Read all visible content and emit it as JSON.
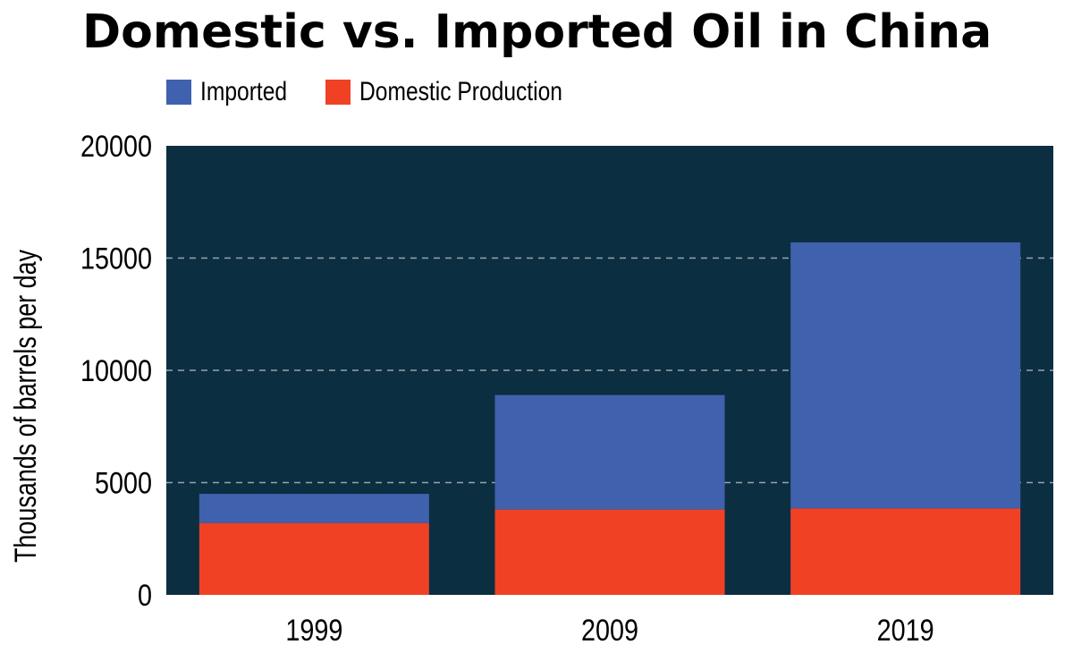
{
  "chart_data": {
    "type": "bar",
    "stacked": true,
    "title": "Domestic vs. Imported Oil in China",
    "xlabel": "",
    "ylabel": "Thousands of barrels per day",
    "categories": [
      "1999",
      "2009",
      "2019"
    ],
    "series": [
      {
        "name": "Domestic Production",
        "color": "#f04125",
        "values": [
          3200,
          3800,
          3850
        ]
      },
      {
        "name": "Imported",
        "color": "#4061ad",
        "values": [
          1300,
          5100,
          11850
        ]
      }
    ],
    "ylim": [
      0,
      20000
    ],
    "yticks": [
      "0",
      "5000",
      "10000",
      "15000",
      "20000"
    ],
    "grid": true,
    "legend": "top-left",
    "legend_order": [
      "Imported",
      "Domestic Production"
    ],
    "plot_background": "#0b2e41",
    "grid_color": "#9aa4ab"
  }
}
